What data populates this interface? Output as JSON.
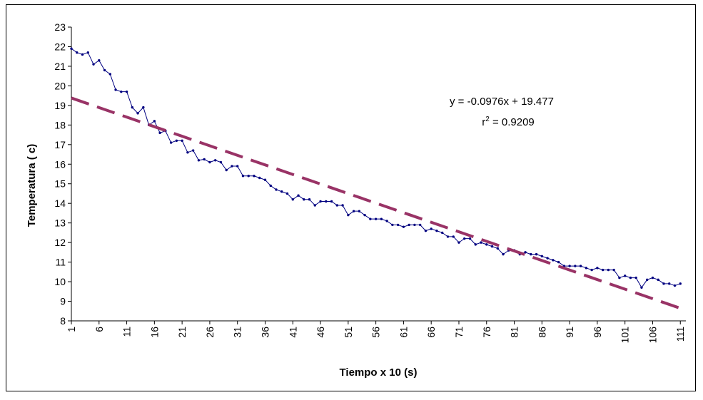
{
  "chart_data": {
    "type": "line",
    "xlabel": "Tiempo x 10 (s)",
    "ylabel": "Temperatura ( c)",
    "ylim": [
      8,
      23
    ],
    "xlim": [
      1,
      112
    ],
    "x_tick_labels": [
      "1",
      "6",
      "11",
      "16",
      "21",
      "26",
      "31",
      "36",
      "41",
      "46",
      "51",
      "56",
      "61",
      "66",
      "71",
      "76",
      "81",
      "86",
      "91",
      "96",
      "101",
      "106",
      "111"
    ],
    "y_tick_labels": [
      "8",
      "9",
      "10",
      "11",
      "12",
      "13",
      "14",
      "15",
      "16",
      "17",
      "18",
      "19",
      "20",
      "21",
      "22",
      "23"
    ],
    "grid": false,
    "legend": "none",
    "series": [
      {
        "color": "#000080",
        "values": [
          21.9,
          21.7,
          21.6,
          21.7,
          21.1,
          21.3,
          20.8,
          20.6,
          19.8,
          19.7,
          19.7,
          18.9,
          18.6,
          18.9,
          18.0,
          18.2,
          17.6,
          17.7,
          17.1,
          17.2,
          17.2,
          16.6,
          16.7,
          16.2,
          16.25,
          16.1,
          16.2,
          16.1,
          15.7,
          15.9,
          15.9,
          15.4,
          15.4,
          15.4,
          15.3,
          15.2,
          14.9,
          14.7,
          14.6,
          14.5,
          14.2,
          14.4,
          14.2,
          14.2,
          13.9,
          14.1,
          14.1,
          14.1,
          13.9,
          13.9,
          13.4,
          13.6,
          13.6,
          13.4,
          13.2,
          13.2,
          13.2,
          13.1,
          12.9,
          12.9,
          12.8,
          12.9,
          12.9,
          12.9,
          12.6,
          12.7,
          12.6,
          12.5,
          12.3,
          12.3,
          12.0,
          12.2,
          12.2,
          11.9,
          12.0,
          11.9,
          11.8,
          11.7,
          11.4,
          11.6,
          11.6,
          11.4,
          11.5,
          11.4,
          11.4,
          11.3,
          11.2,
          11.1,
          11.0,
          10.8,
          10.8,
          10.8,
          10.8,
          10.7,
          10.6,
          10.7,
          10.6,
          10.6,
          10.6,
          10.2,
          10.3,
          10.2,
          10.2,
          9.7,
          10.1,
          10.2,
          10.1,
          9.9,
          9.9,
          9.8,
          9.9
        ]
      }
    ],
    "trendline": {
      "slope": -0.0976,
      "intercept": 19.477,
      "color": "#993366",
      "x_range": [
        1,
        112
      ]
    },
    "annotation": {
      "equation": "y = -0.0976x + 19.477",
      "r2_prefix": "r",
      "r2_exponent": "2",
      "r2_value": " = 0.9209"
    }
  }
}
